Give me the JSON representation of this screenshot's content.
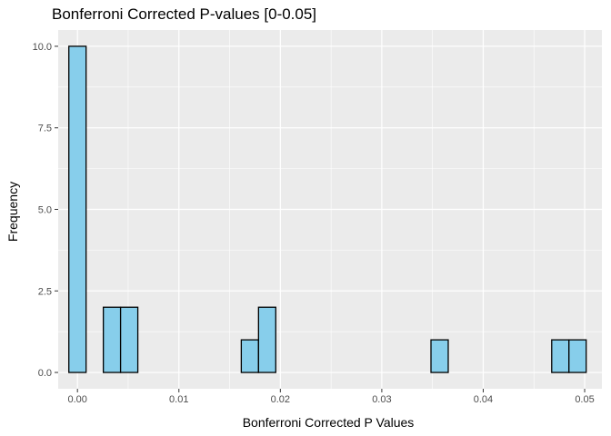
{
  "chart_data": {
    "type": "bar",
    "subtype": "histogram",
    "title": "Bonferroni Corrected P-values [0-0.05]",
    "xlabel": "Bonferroni Corrected P Values",
    "ylabel": "Frequency",
    "xlim": [
      -0.0019,
      0.0517
    ],
    "ylim": [
      -0.5,
      10.5
    ],
    "grid": true,
    "bin_width": 0.0017,
    "xticks": [
      {
        "value": 0.0,
        "label": "0.00"
      },
      {
        "value": 0.01,
        "label": "0.01"
      },
      {
        "value": 0.02,
        "label": "0.02"
      },
      {
        "value": 0.03,
        "label": "0.03"
      },
      {
        "value": 0.04,
        "label": "0.04"
      },
      {
        "value": 0.05,
        "label": "0.05"
      }
    ],
    "yticks": [
      {
        "value": 0.0,
        "label": "0.0"
      },
      {
        "value": 2.5,
        "label": "2.5"
      },
      {
        "value": 5.0,
        "label": "5.0"
      },
      {
        "value": 7.5,
        "label": "7.5"
      },
      {
        "value": 10.0,
        "label": "10.0"
      }
    ],
    "bins": [
      {
        "x0": -0.00085,
        "x1": 0.00085,
        "count": 10
      },
      {
        "x0": 0.00085,
        "x1": 0.00255,
        "count": 0
      },
      {
        "x0": 0.00255,
        "x1": 0.00425,
        "count": 2
      },
      {
        "x0": 0.00425,
        "x1": 0.00595,
        "count": 2
      },
      {
        "x0": 0.00595,
        "x1": 0.00765,
        "count": 0
      },
      {
        "x0": 0.00765,
        "x1": 0.00935,
        "count": 0
      },
      {
        "x0": 0.00935,
        "x1": 0.01105,
        "count": 0
      },
      {
        "x0": 0.01105,
        "x1": 0.01275,
        "count": 0
      },
      {
        "x0": 0.01275,
        "x1": 0.01445,
        "count": 0
      },
      {
        "x0": 0.01445,
        "x1": 0.01615,
        "count": 0
      },
      {
        "x0": 0.01615,
        "x1": 0.01785,
        "count": 1
      },
      {
        "x0": 0.01785,
        "x1": 0.01955,
        "count": 2
      },
      {
        "x0": 0.01955,
        "x1": 0.02125,
        "count": 0
      },
      {
        "x0": 0.02125,
        "x1": 0.02295,
        "count": 0
      },
      {
        "x0": 0.02295,
        "x1": 0.02465,
        "count": 0
      },
      {
        "x0": 0.02465,
        "x1": 0.02635,
        "count": 0
      },
      {
        "x0": 0.02635,
        "x1": 0.02805,
        "count": 0
      },
      {
        "x0": 0.02805,
        "x1": 0.02975,
        "count": 0
      },
      {
        "x0": 0.02975,
        "x1": 0.03145,
        "count": 0
      },
      {
        "x0": 0.03145,
        "x1": 0.03315,
        "count": 0
      },
      {
        "x0": 0.03315,
        "x1": 0.03485,
        "count": 0
      },
      {
        "x0": 0.03485,
        "x1": 0.03655,
        "count": 1
      },
      {
        "x0": 0.03655,
        "x1": 0.03825,
        "count": 0
      },
      {
        "x0": 0.03825,
        "x1": 0.03995,
        "count": 0
      },
      {
        "x0": 0.03995,
        "x1": 0.04165,
        "count": 0
      },
      {
        "x0": 0.04165,
        "x1": 0.04335,
        "count": 0
      },
      {
        "x0": 0.04335,
        "x1": 0.04505,
        "count": 0
      },
      {
        "x0": 0.04505,
        "x1": 0.04675,
        "count": 0
      },
      {
        "x0": 0.04675,
        "x1": 0.04845,
        "count": 1
      },
      {
        "x0": 0.04845,
        "x1": 0.05015,
        "count": 1
      }
    ],
    "colors": {
      "bar_fill": "#87CEEB",
      "bar_stroke": "#000000",
      "panel_bg": "#EBEBEB",
      "grid": "#FFFFFF",
      "tick": "#333333"
    }
  }
}
